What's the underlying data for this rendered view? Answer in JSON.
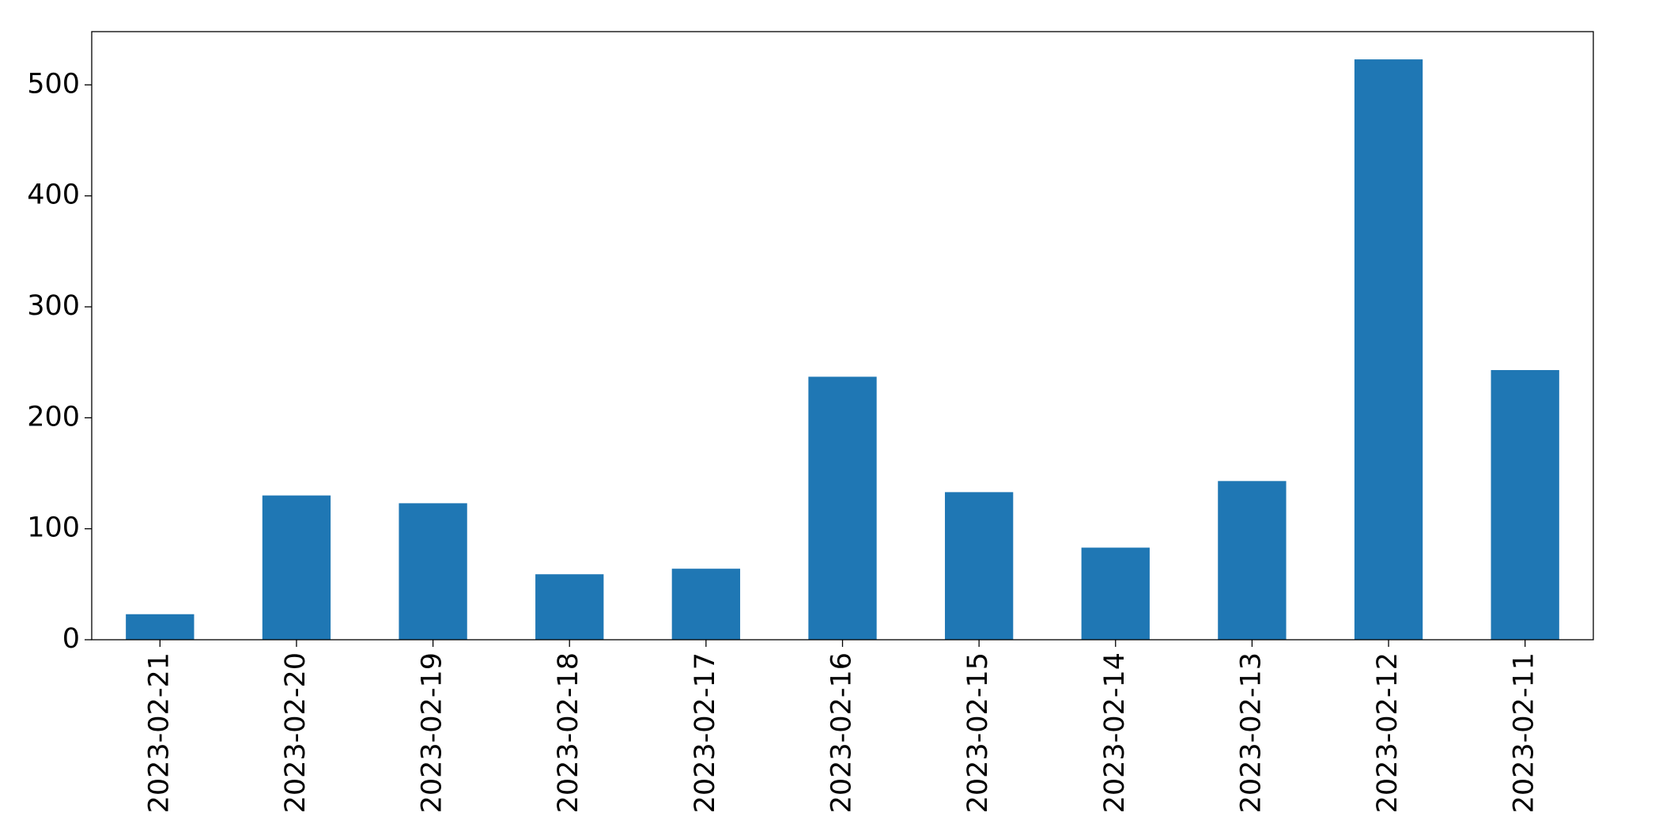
{
  "chart_data": {
    "type": "bar",
    "categories": [
      "2023-02-21",
      "2023-02-20",
      "2023-02-19",
      "2023-02-18",
      "2023-02-17",
      "2023-02-16",
      "2023-02-15",
      "2023-02-14",
      "2023-02-13",
      "2023-02-12",
      "2023-02-11"
    ],
    "values": [
      23,
      130,
      123,
      59,
      64,
      237,
      133,
      83,
      143,
      523,
      243
    ],
    "color": "#1f77b4",
    "ylim": [
      0,
      548
    ],
    "yticks": [
      0,
      100,
      200,
      300,
      400,
      500
    ],
    "grid": false
  }
}
